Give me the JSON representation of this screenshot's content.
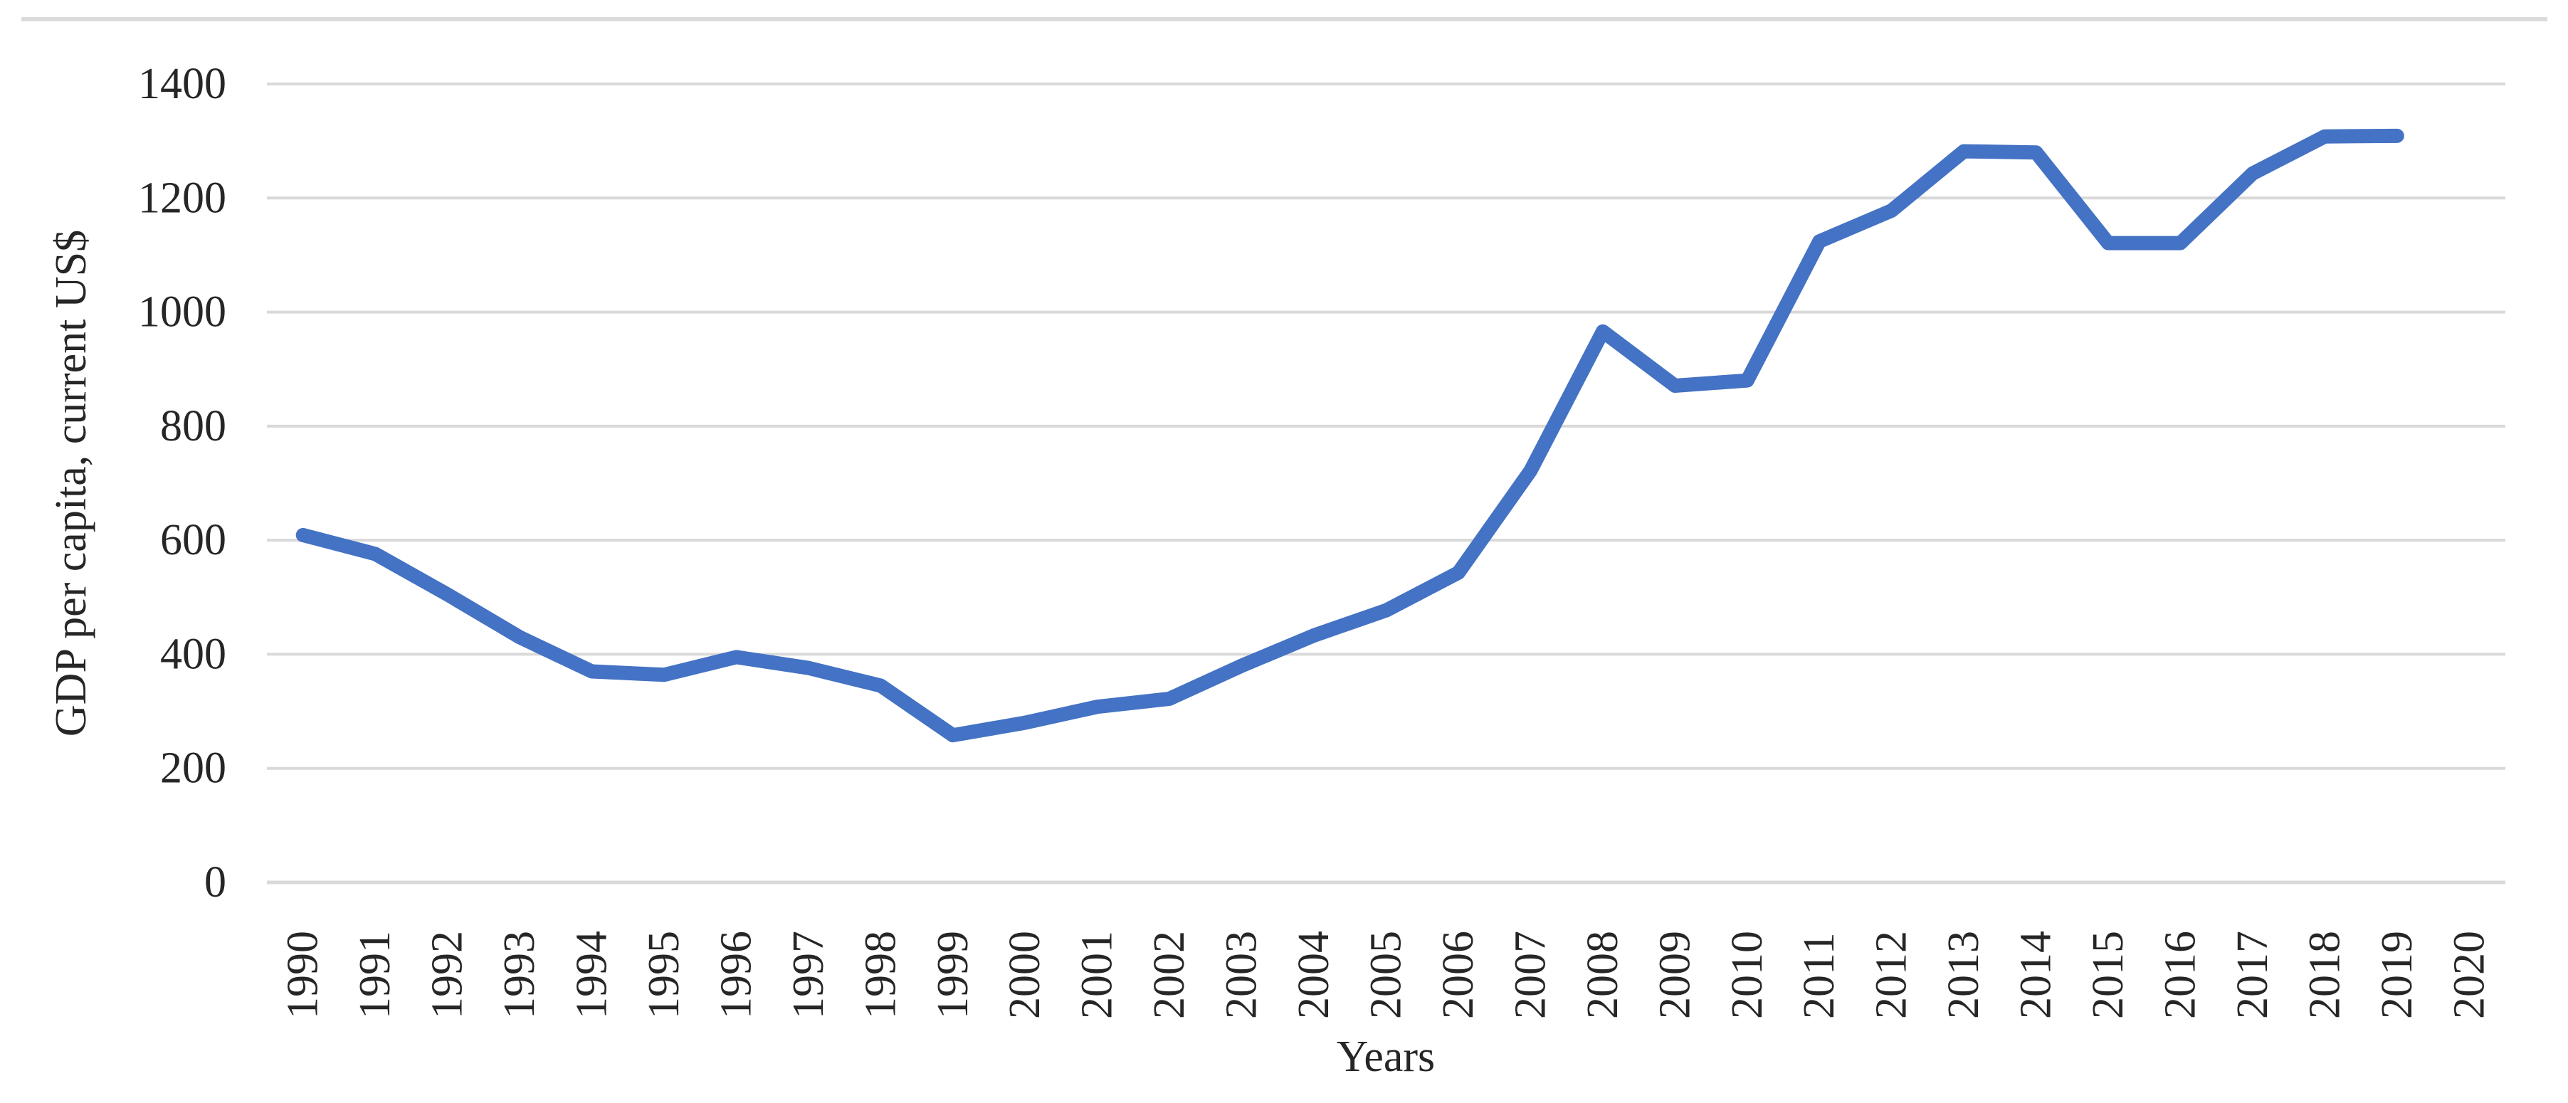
{
  "chart_data": {
    "type": "line",
    "title": "",
    "xlabel": "Years",
    "ylabel": "GDP per capita, current US$",
    "categories": [
      "1990",
      "1991",
      "1992",
      "1993",
      "1994",
      "1995",
      "1996",
      "1997",
      "1998",
      "1999",
      "2000",
      "2001",
      "2002",
      "2003",
      "2004",
      "2005",
      "2006",
      "2007",
      "2008",
      "2009",
      "2010",
      "2011",
      "2012",
      "2013",
      "2014",
      "2015",
      "2016",
      "2017",
      "2018",
      "2019",
      "2020"
    ],
    "series": [
      {
        "name": "GDP per capita, current US$",
        "values": [
          609,
          576,
          505,
          430,
          370,
          364,
          395,
          376,
          345,
          258,
          280,
          308,
          322,
          380,
          433,
          477,
          543,
          722,
          966,
          871,
          880,
          1124,
          1178,
          1282,
          1280,
          1121,
          1121,
          1243,
          1308,
          1309,
          null
        ]
      }
    ],
    "y_ticks": [
      0,
      200,
      400,
      600,
      800,
      1000,
      1200,
      1400
    ],
    "ylim": [
      0,
      1400
    ],
    "grid": "horizontal-only",
    "legend": "none",
    "x_label_rotation_deg": -90,
    "colors": {
      "line": "#4472C4",
      "gridline": "#D9D9D9",
      "axis_line": "#D9D9D9",
      "text": "#262626",
      "top_rule": "#DBDBDB",
      "background": "#FFFFFF"
    }
  }
}
